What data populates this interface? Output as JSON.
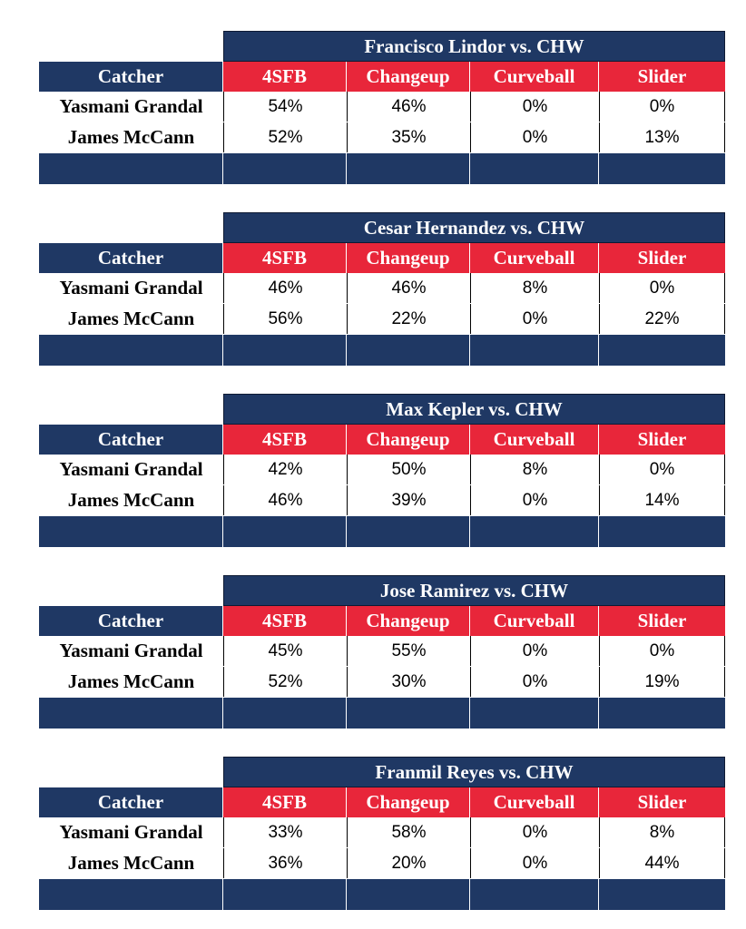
{
  "colors": {
    "navy": "#1f3864",
    "red": "#e8263a"
  },
  "tables": [
    {
      "title": "Francisco Lindor vs. CHW",
      "header": [
        "Catcher",
        "4SFB",
        "Changeup",
        "Curveball",
        "Slider"
      ],
      "rows": [
        {
          "catcher": "Yasmani Grandal",
          "values": [
            "54%",
            "46%",
            "0%",
            "0%"
          ]
        },
        {
          "catcher": "James McCann",
          "values": [
            "52%",
            "35%",
            "0%",
            "13%"
          ]
        }
      ]
    },
    {
      "title": "Cesar Hernandez vs. CHW",
      "header": [
        "Catcher",
        "4SFB",
        "Changeup",
        "Curveball",
        "Slider"
      ],
      "rows": [
        {
          "catcher": "Yasmani Grandal",
          "values": [
            "46%",
            "46%",
            "8%",
            "0%"
          ]
        },
        {
          "catcher": "James McCann",
          "values": [
            "56%",
            "22%",
            "0%",
            "22%"
          ]
        }
      ]
    },
    {
      "title": "Max Kepler vs. CHW",
      "header": [
        "Catcher",
        "4SFB",
        "Changeup",
        "Curveball",
        "Slider"
      ],
      "rows": [
        {
          "catcher": "Yasmani Grandal",
          "values": [
            "42%",
            "50%",
            "8%",
            "0%"
          ]
        },
        {
          "catcher": "James McCann",
          "values": [
            "46%",
            "39%",
            "0%",
            "14%"
          ]
        }
      ]
    },
    {
      "title": "Jose Ramirez vs. CHW",
      "header": [
        "Catcher",
        "4SFB",
        "Changeup",
        "Curveball",
        "Slider"
      ],
      "rows": [
        {
          "catcher": "Yasmani Grandal",
          "values": [
            "45%",
            "55%",
            "0%",
            "0%"
          ]
        },
        {
          "catcher": "James McCann",
          "values": [
            "52%",
            "30%",
            "0%",
            "19%"
          ]
        }
      ]
    },
    {
      "title": "Franmil Reyes vs. CHW",
      "header": [
        "Catcher",
        "4SFB",
        "Changeup",
        "Curveball",
        "Slider"
      ],
      "rows": [
        {
          "catcher": "Yasmani Grandal",
          "values": [
            "33%",
            "58%",
            "0%",
            "8%"
          ]
        },
        {
          "catcher": "James McCann",
          "values": [
            "36%",
            "20%",
            "0%",
            "44%"
          ]
        }
      ]
    }
  ],
  "chart_data": [
    {
      "type": "table",
      "title": "Francisco Lindor vs. CHW",
      "columns": [
        "Catcher",
        "4SFB",
        "Changeup",
        "Curveball",
        "Slider"
      ],
      "rows": [
        [
          "Yasmani Grandal",
          "54%",
          "46%",
          "0%",
          "0%"
        ],
        [
          "James McCann",
          "52%",
          "35%",
          "0%",
          "13%"
        ]
      ]
    },
    {
      "type": "table",
      "title": "Cesar Hernandez vs. CHW",
      "columns": [
        "Catcher",
        "4SFB",
        "Changeup",
        "Curveball",
        "Slider"
      ],
      "rows": [
        [
          "Yasmani Grandal",
          "46%",
          "46%",
          "8%",
          "0%"
        ],
        [
          "James McCann",
          "56%",
          "22%",
          "0%",
          "22%"
        ]
      ]
    },
    {
      "type": "table",
      "title": "Max Kepler vs. CHW",
      "columns": [
        "Catcher",
        "4SFB",
        "Changeup",
        "Curveball",
        "Slider"
      ],
      "rows": [
        [
          "Yasmani Grandal",
          "42%",
          "50%",
          "8%",
          "0%"
        ],
        [
          "James McCann",
          "46%",
          "39%",
          "0%",
          "14%"
        ]
      ]
    },
    {
      "type": "table",
      "title": "Jose Ramirez vs. CHW",
      "columns": [
        "Catcher",
        "4SFB",
        "Changeup",
        "Curveball",
        "Slider"
      ],
      "rows": [
        [
          "Yasmani Grandal",
          "45%",
          "55%",
          "0%",
          "0%"
        ],
        [
          "James McCann",
          "52%",
          "30%",
          "0%",
          "19%"
        ]
      ]
    },
    {
      "type": "table",
      "title": "Franmil Reyes vs. CHW",
      "columns": [
        "Catcher",
        "4SFB",
        "Changeup",
        "Curveball",
        "Slider"
      ],
      "rows": [
        [
          "Yasmani Grandal",
          "33%",
          "58%",
          "0%",
          "8%"
        ],
        [
          "James McCann",
          "36%",
          "20%",
          "0%",
          "44%"
        ]
      ]
    }
  ]
}
